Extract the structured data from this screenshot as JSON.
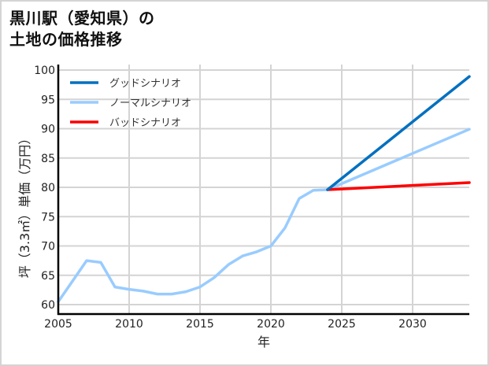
{
  "title": {
    "line1": "黒川駅（愛知県）の",
    "line2": "土地の価格推移"
  },
  "colors": {
    "good": "#0070c0",
    "normal": "#99ccff",
    "bad": "#ff0000",
    "grid": "#d4d4d4",
    "axis": "#000000"
  },
  "chart_data": {
    "type": "line",
    "title": "黒川駅（愛知県）の土地の価格推移",
    "xlabel": "年",
    "ylabel": "坪（3.3㎡）単価（万円）",
    "xlim": [
      2005,
      2034
    ],
    "ylim": [
      59,
      100
    ],
    "xticks": [
      2005,
      2010,
      2015,
      2020,
      2025,
      2030
    ],
    "yticks": [
      60,
      65,
      70,
      75,
      80,
      85,
      90,
      95,
      100
    ],
    "grid": true,
    "legend_position": "upper-left",
    "series": [
      {
        "name": "グッドシナリオ",
        "color": "#0070c0",
        "x": [
          2024,
          2034
        ],
        "values": [
          79.6,
          98.9
        ]
      },
      {
        "name": "ノーマルシナリオ",
        "color": "#99ccff",
        "x": [
          2005,
          2006,
          2007,
          2008,
          2009,
          2010,
          2011,
          2012,
          2013,
          2014,
          2015,
          2016,
          2017,
          2018,
          2019,
          2020,
          2021,
          2022,
          2023,
          2024,
          2034
        ],
        "values": [
          60.5,
          64.0,
          67.5,
          67.2,
          63.0,
          62.6,
          62.3,
          61.8,
          61.8,
          62.2,
          63.0,
          64.6,
          66.8,
          68.3,
          69.0,
          70.0,
          73.1,
          78.1,
          79.5,
          79.6,
          89.9
        ]
      },
      {
        "name": "バッドシナリオ",
        "color": "#ff0000",
        "x": [
          2024,
          2034
        ],
        "values": [
          79.6,
          80.8
        ]
      }
    ]
  }
}
